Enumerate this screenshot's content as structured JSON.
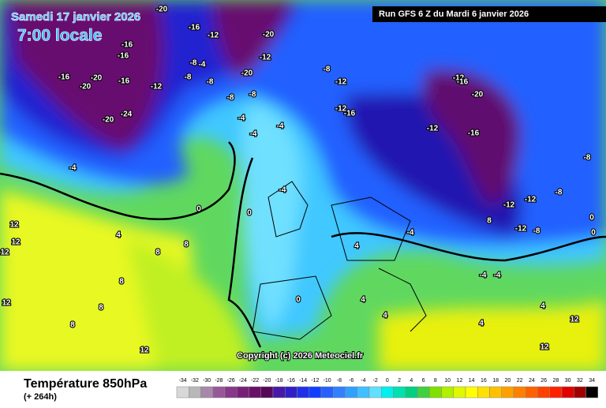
{
  "header": {
    "date": "Samedi 17 janvier 2026",
    "time": "7:00 locale",
    "run": "Run GFS 6 Z du Mardi 6 janvier 2026"
  },
  "copyright": "Copyright (c) 2026 Meteociel.fr",
  "legend": {
    "title": "Température 850hPa",
    "lead": "(+ 264h)",
    "values": [
      -34,
      -32,
      -30,
      -28,
      -26,
      -24,
      -22,
      -20,
      -18,
      -16,
      -14,
      -12,
      -10,
      -8,
      -6,
      -4,
      -2,
      0,
      2,
      4,
      6,
      8,
      10,
      12,
      14,
      16,
      18,
      20,
      22,
      24,
      26,
      28,
      30,
      32,
      34
    ],
    "colors": [
      "#d8d8d8",
      "#b8b8b8",
      "#a888a8",
      "#985898",
      "#883888",
      "#782078",
      "#681068",
      "#580858",
      "#4818a8",
      "#3020c8",
      "#2030e8",
      "#1040ff",
      "#2860ff",
      "#3080ff",
      "#30a0ff",
      "#40c0ff",
      "#60e0ff",
      "#00f0f0",
      "#00e0b0",
      "#00d080",
      "#40d040",
      "#80e000",
      "#b0f000",
      "#e0f800",
      "#ffff00",
      "#ffe000",
      "#ffc000",
      "#ffa000",
      "#ff8000",
      "#ff6000",
      "#ff4000",
      "#ff2000",
      "#e00000",
      "#a00000",
      "#000000"
    ]
  },
  "map_labels": [
    -20,
    -16,
    -16,
    -16,
    -20,
    -20,
    -16,
    -20,
    -24,
    -16,
    -12,
    -8,
    -8,
    -4,
    -8,
    -12,
    -20,
    -20,
    -12,
    -8,
    -8,
    -4,
    -4,
    -4,
    -8,
    -12,
    -16,
    -12,
    -16,
    -20,
    -12,
    -8,
    -12,
    -12,
    -8,
    -4,
    0,
    -4,
    4,
    -4,
    0,
    0,
    8,
    8,
    8,
    12,
    12,
    12,
    12,
    4,
    8,
    8,
    4,
    4,
    0,
    -4,
    4,
    4,
    8,
    12,
    12,
    12,
    -12,
    -8,
    -4,
    0,
    -12,
    -16
  ]
}
